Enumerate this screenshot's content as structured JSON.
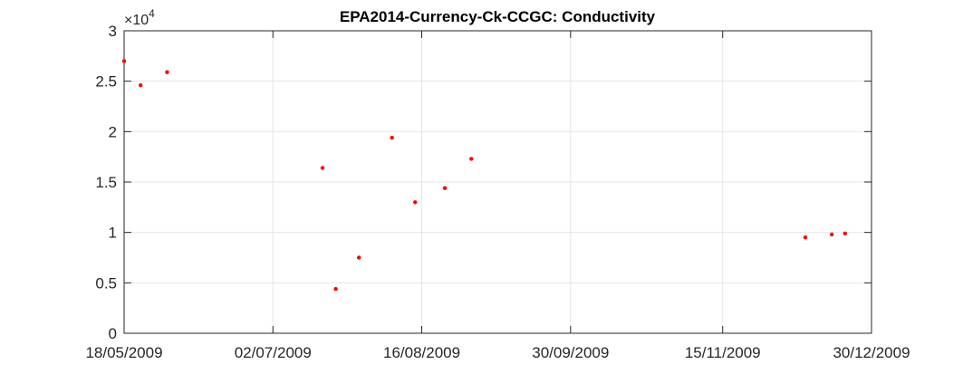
{
  "chart_data": {
    "type": "scatter",
    "title": "EPA2014-Currency-Ck-CCGC: Conductivity",
    "xlabel": "",
    "ylabel": "",
    "x_axis": {
      "type": "date",
      "range": [
        "2009-05-18",
        "2009-12-30"
      ],
      "tick_values": [
        "2009-05-18",
        "2009-07-02",
        "2009-08-16",
        "2009-09-30",
        "2009-11-15",
        "2009-12-30"
      ],
      "tick_labels": [
        "18/05/2009",
        "02/07/2009",
        "16/08/2009",
        "30/09/2009",
        "15/11/2009",
        "30/12/2009"
      ]
    },
    "y_axis": {
      "range": [
        0,
        30000
      ],
      "tick_values": [
        0,
        5000,
        10000,
        15000,
        20000,
        25000,
        30000
      ],
      "tick_labels": [
        "0",
        "0.5",
        "1",
        "1.5",
        "2",
        "2.5",
        "3"
      ],
      "multiplier_base": "×10",
      "multiplier_exp": "4"
    },
    "grid": true,
    "legend": "none",
    "marker_color": "#ff0000",
    "series": [
      {
        "points": [
          {
            "x": "2009-05-18",
            "y": 27000
          },
          {
            "x": "2009-05-23",
            "y": 24600
          },
          {
            "x": "2009-05-31",
            "y": 25900
          },
          {
            "x": "2009-07-17",
            "y": 16400
          },
          {
            "x": "2009-07-21",
            "y": 4400
          },
          {
            "x": "2009-07-28",
            "y": 7500
          },
          {
            "x": "2009-08-07",
            "y": 19400
          },
          {
            "x": "2009-08-14",
            "y": 13000
          },
          {
            "x": "2009-08-23",
            "y": 14400
          },
          {
            "x": "2009-08-31",
            "y": 17300
          },
          {
            "x": "2009-12-10",
            "y": 9500
          },
          {
            "x": "2009-12-18",
            "y": 9800
          },
          {
            "x": "2009-12-22",
            "y": 9900
          }
        ]
      }
    ]
  }
}
